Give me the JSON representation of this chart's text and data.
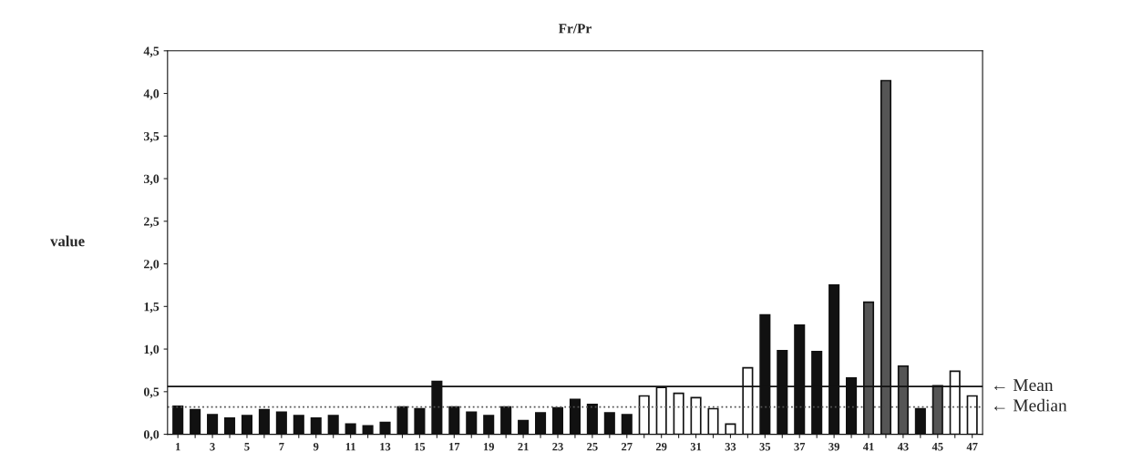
{
  "chart_data": {
    "type": "bar",
    "title": "Fr/Pr",
    "ylabel": "value",
    "categories": [
      "1",
      null,
      "3",
      null,
      "5",
      null,
      "7",
      null,
      "9",
      null,
      "11",
      null,
      "13",
      null,
      "15",
      null,
      "17",
      null,
      "19",
      null,
      "21",
      null,
      "23",
      null,
      "25",
      null,
      "27",
      null,
      "29",
      null,
      "31",
      null,
      "33",
      null,
      "35",
      null,
      "37",
      null,
      "39",
      null,
      "41",
      null,
      "43",
      null,
      "45",
      null,
      "47"
    ],
    "values": [
      0.33,
      0.29,
      0.23,
      0.19,
      0.22,
      0.29,
      0.26,
      0.22,
      0.19,
      0.22,
      0.12,
      0.1,
      0.14,
      0.32,
      0.3,
      0.62,
      0.32,
      0.26,
      0.22,
      0.32,
      0.16,
      0.25,
      0.31,
      0.41,
      0.35,
      0.25,
      0.23,
      0.45,
      0.55,
      0.48,
      0.43,
      0.3,
      0.12,
      0.78,
      1.4,
      0.98,
      1.28,
      0.97,
      1.75,
      0.66,
      1.55,
      4.15,
      0.8,
      0.3,
      0.57,
      0.74,
      0.45
    ],
    "colors": [
      "#111111",
      "#111111",
      "#111111",
      "#111111",
      "#111111",
      "#111111",
      "#111111",
      "#111111",
      "#111111",
      "#111111",
      "#111111",
      "#111111",
      "#111111",
      "#111111",
      "#111111",
      "#111111",
      "#111111",
      "#111111",
      "#111111",
      "#111111",
      "#111111",
      "#111111",
      "#111111",
      "#111111",
      "#111111",
      "#111111",
      "#111111",
      "#ffffff",
      "#ffffff",
      "#ffffff",
      "#ffffff",
      "#ffffff",
      "#ffffff",
      "#ffffff",
      "#111111",
      "#111111",
      "#111111",
      "#111111",
      "#111111",
      "#111111",
      "#555555",
      "#555555",
      "#555555",
      "#111111",
      "#555555",
      "#ffffff",
      "#ffffff"
    ],
    "ylim": [
      0,
      4.5
    ],
    "yticks": [
      {
        "value": 0,
        "label": "0,0"
      },
      {
        "value": 0.5,
        "label": "0,5"
      },
      {
        "value": 1,
        "label": "1,0"
      },
      {
        "value": 1.5,
        "label": "1,5"
      },
      {
        "value": 2,
        "label": "2,0"
      },
      {
        "value": 2.5,
        "label": "2,5"
      },
      {
        "value": 3,
        "label": "3,0"
      },
      {
        "value": 3.5,
        "label": "3,5"
      },
      {
        "value": 4,
        "label": "4,0"
      },
      {
        "value": 4.5,
        "label": "4,5"
      }
    ],
    "ref_lines": [
      {
        "axis": "y",
        "value": 0.56,
        "label": "← Mean",
        "color": "#111111",
        "line_style": "solid"
      },
      {
        "axis": "y",
        "value": 0.32,
        "label": "← Median",
        "color": "#555555",
        "line_style": "dotted"
      }
    ],
    "grid": false,
    "legend": false
  }
}
